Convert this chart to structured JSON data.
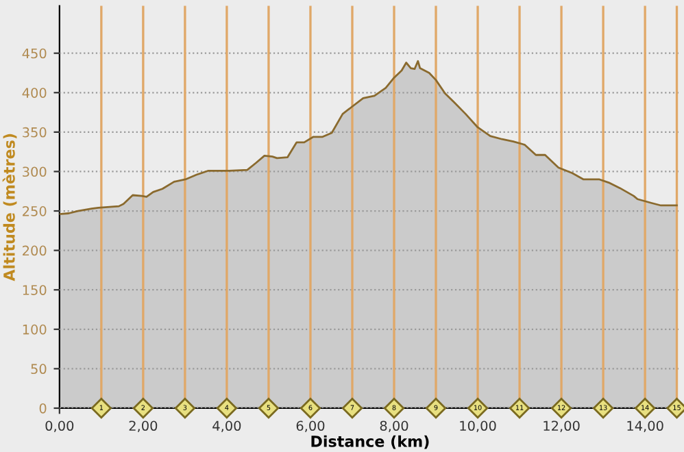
{
  "chart_data": {
    "type": "area",
    "xlabel": "Distance (km)",
    "ylabel": "Altitude (mètres)",
    "series": [
      {
        "color": "#cbcbcb",
        "x": [
          0,
          0.22,
          0.44,
          0.77,
          0.93,
          1.42,
          1.53,
          1.75,
          1.97,
          2.08,
          2.24,
          2.46,
          2.74,
          3.01,
          3.28,
          3.56,
          4.05,
          4.49,
          4.7,
          4.9,
          5.09,
          5.2,
          5.45,
          5.67,
          5.85,
          6.07,
          6.29,
          6.51,
          6.77,
          6.99,
          7.26,
          7.53,
          7.8,
          8.0,
          8.18,
          8.29,
          8.4,
          8.49,
          8.57,
          8.62,
          8.84,
          9.0,
          9.22,
          9.43,
          9.71,
          10.0,
          10.3,
          10.58,
          10.85,
          11.12,
          11.39,
          11.61,
          11.93,
          12.26,
          12.53,
          12.91,
          13.13,
          13.4,
          13.73,
          13.82,
          14.16,
          14.38,
          14.76
        ],
        "values": [
          246,
          247,
          250,
          253,
          254,
          256,
          259,
          270,
          269,
          268,
          274,
          278,
          287,
          290,
          296,
          301,
          301,
          302,
          311,
          320,
          319,
          317,
          318,
          337,
          337,
          344,
          344,
          349,
          373,
          382,
          393,
          396,
          406,
          419,
          428,
          438,
          431,
          430,
          440,
          431,
          425,
          416,
          399,
          388,
          373,
          356,
          345,
          341,
          338,
          334,
          321,
          321,
          305,
          298,
          290,
          290,
          286,
          279,
          269,
          265,
          260,
          257,
          257
        ]
      }
    ],
    "xlim": [
      0,
      14.85
    ],
    "ylim": [
      0,
      510
    ],
    "xticks": [
      {
        "value": 0,
        "label": "0,00"
      },
      {
        "value": 2,
        "label": "2,00"
      },
      {
        "value": 4,
        "label": "4,00"
      },
      {
        "value": 6,
        "label": "6,00"
      },
      {
        "value": 8,
        "label": "8,00"
      },
      {
        "value": 10,
        "label": "10,00"
      },
      {
        "value": 12,
        "label": "12,00"
      },
      {
        "value": 14,
        "label": "14,00"
      }
    ],
    "yticks": [
      0,
      50,
      100,
      150,
      200,
      250,
      300,
      350,
      400,
      450
    ],
    "grid": "y",
    "ref_lines": [
      {
        "axis": "x",
        "value": 1,
        "label": "1",
        "color": "#e0a868"
      },
      {
        "axis": "x",
        "value": 2,
        "label": "2",
        "color": "#e0a868"
      },
      {
        "axis": "x",
        "value": 3,
        "label": "3",
        "color": "#e0a868"
      },
      {
        "axis": "x",
        "value": 4,
        "label": "4",
        "color": "#e0a868"
      },
      {
        "axis": "x",
        "value": 5,
        "label": "5",
        "color": "#e0a868"
      },
      {
        "axis": "x",
        "value": 6,
        "label": "6",
        "color": "#e0a868"
      },
      {
        "axis": "x",
        "value": 7,
        "label": "7",
        "color": "#e0a868"
      },
      {
        "axis": "x",
        "value": 8,
        "label": "8",
        "color": "#e0a868"
      },
      {
        "axis": "x",
        "value": 9,
        "label": "9",
        "color": "#e0a868"
      },
      {
        "axis": "x",
        "value": 10,
        "label": "10",
        "color": "#e0a868"
      },
      {
        "axis": "x",
        "value": 11,
        "label": "11",
        "color": "#e0a868"
      },
      {
        "axis": "x",
        "value": 12,
        "label": "12",
        "color": "#e0a868"
      },
      {
        "axis": "x",
        "value": 13,
        "label": "13",
        "color": "#e0a868"
      },
      {
        "axis": "x",
        "value": 14,
        "label": "14",
        "color": "#e0a868"
      },
      {
        "axis": "x",
        "value": 14.76,
        "label": "15",
        "color": "#e0a868"
      }
    ]
  }
}
